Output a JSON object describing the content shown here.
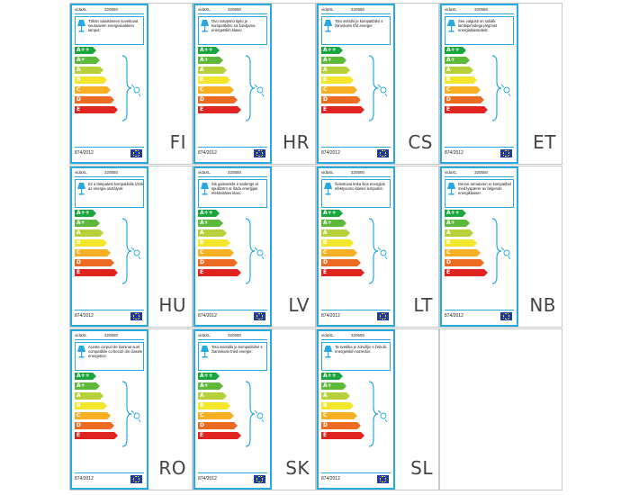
{
  "brand": "vidaXL",
  "product_code": "320550",
  "regulation": "874/2012",
  "classes": [
    "A++",
    "A+",
    "A",
    "B",
    "C",
    "D",
    "E"
  ],
  "class_colors": [
    "#1aa63d",
    "#5cb93a",
    "#b8d13a",
    "#f3e62b",
    "#f7b024",
    "#ec6b22",
    "#e02520"
  ],
  "icons": {
    "lamp": "lamp-icon",
    "eu_flag": "eu-flag-icon",
    "bulb": "bulb-icon"
  },
  "labels": [
    {
      "lang": "FI",
      "text": "Tähän valaisimeen soveltuvat seuraavien energialuokkien lamput:"
    },
    {
      "lang": "HR",
      "text": "Ovo rasvjetno tijelo je kompatibilno sa žaruljama energetskih klasa:"
    },
    {
      "lang": "CS",
      "text": "Toto svítidlo je kompatibilní s žárovkami tříd energie:"
    },
    {
      "lang": "ET",
      "text": "See valgusti on sobilik lambipirnidega järgmist energiaklassidest:"
    },
    {
      "lang": "HU",
      "text": "Ez a lámpatest kompatibilis izzók az energia osztályok:"
    },
    {
      "lang": "LV",
      "text": "Šis gaismeklis ir saderīgs ar spuldzēm ar šādu enerģijas efektivitātes klasi:"
    },
    {
      "lang": "LT",
      "text": "Šviestuvui tinka šios energijos efektyvumo klasės lemputės:"
    },
    {
      "lang": "NB",
      "text": "Denne armaturen er kompatibel med lyspærer av følgende energiklasser:"
    },
    {
      "lang": "RO",
      "text": "Aceste corpuri de iluminat sunt compatibile cu becuri din clasele energetice:"
    },
    {
      "lang": "SK",
      "text": "Toto svietidlo je kompatibilné s žiarovkami tried energie:"
    },
    {
      "lang": "SL",
      "text": "Ta svetilka je združljiv s žebulic energetskih razredov:"
    }
  ]
}
